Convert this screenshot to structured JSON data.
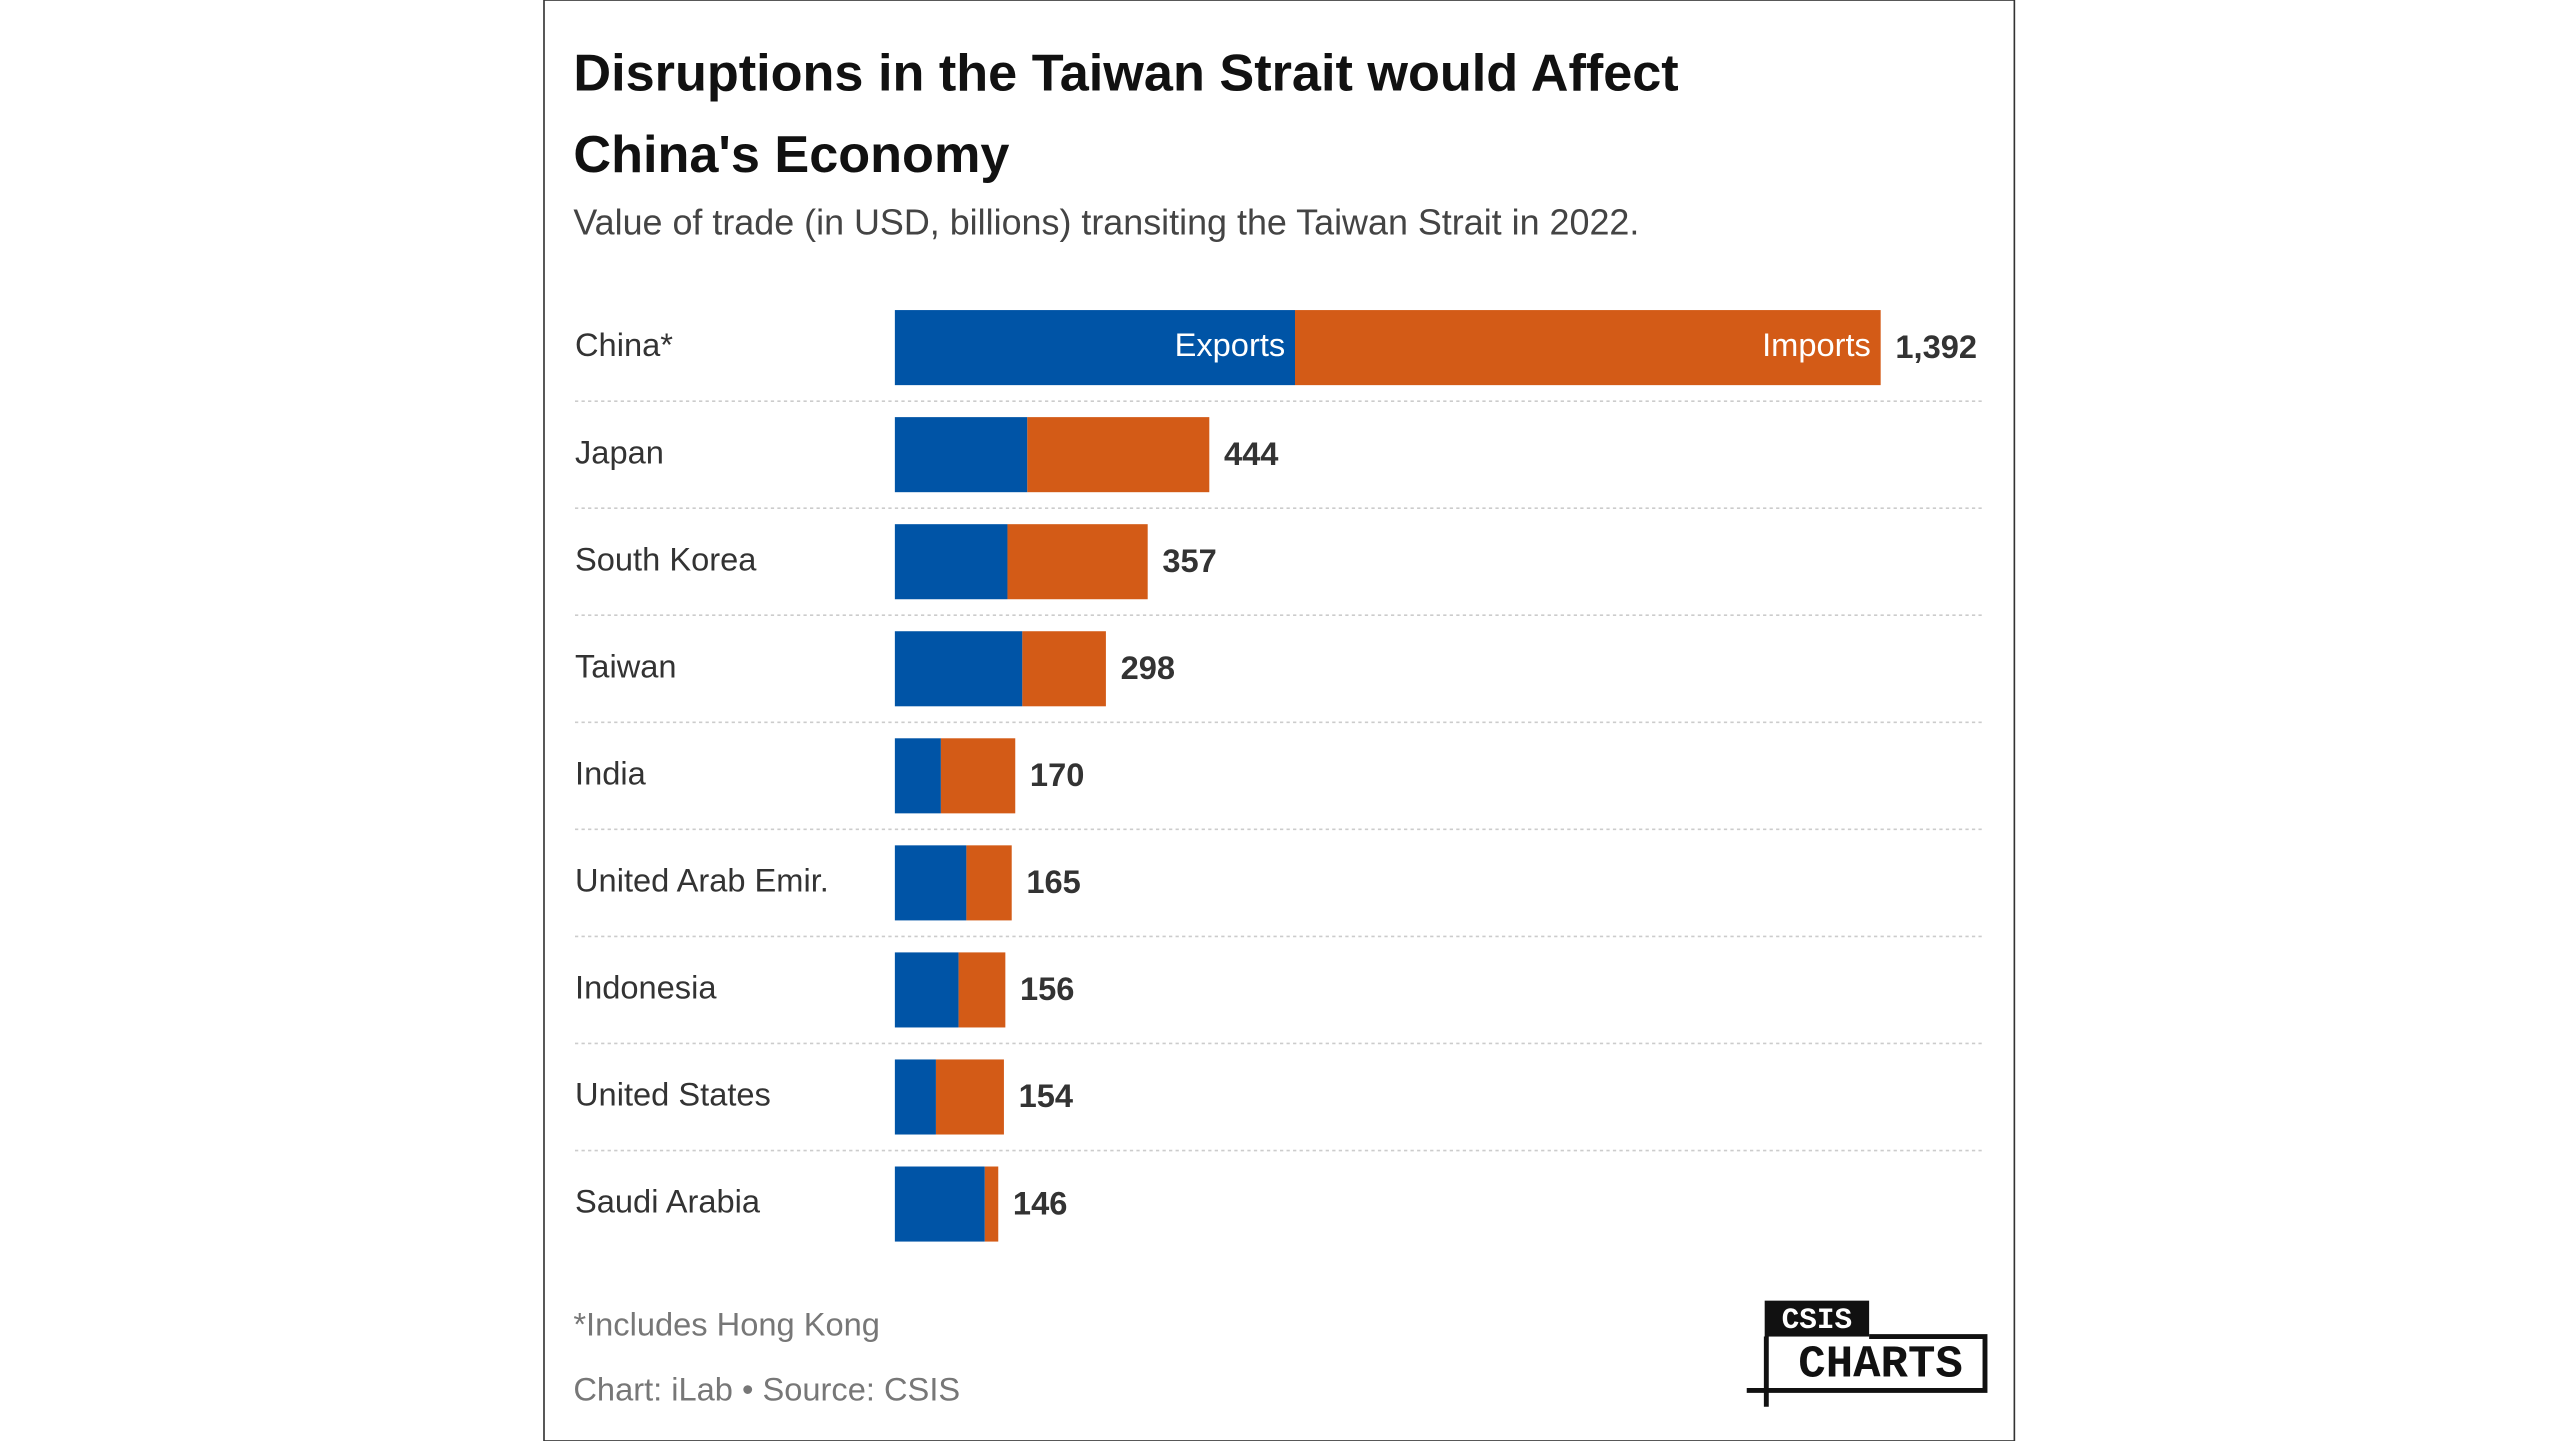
{
  "chart_data": {
    "type": "stacked-bar-horizontal",
    "title": "Disruptions in the Taiwan Strait would Affect",
    "title_line2": "China's Economy",
    "subtitle": "Value of trade (in USD, billions) transiting the Taiwan Strait in 2022.",
    "categories": [
      "China*",
      "Japan",
      "South Korea",
      "Taiwan",
      "India",
      "United Arab Emir.",
      "Indonesia",
      "United States",
      "Saudi Arabia"
    ],
    "series": [
      {
        "name": "Exports",
        "color": "#0054a6",
        "values": [
          565,
          187,
          159,
          180,
          65,
          101,
          90,
          58,
          127
        ]
      },
      {
        "name": "Imports",
        "color": "#d35b17",
        "values": [
          827,
          257,
          198,
          118,
          105,
          64,
          66,
          96,
          19
        ]
      }
    ],
    "totals": [
      1392,
      444,
      357,
      298,
      170,
      165,
      156,
      154,
      146
    ],
    "total_labels": [
      "1,392",
      "444",
      "357",
      "298",
      "170",
      "165",
      "156",
      "154",
      "146"
    ],
    "xlim": [
      0,
      1537
    ],
    "footnote": "*Includes Hong Kong",
    "source": "Chart: iLab • Source: CSIS",
    "logo": {
      "top": "CSIS",
      "bottom": "CHARTS"
    }
  }
}
